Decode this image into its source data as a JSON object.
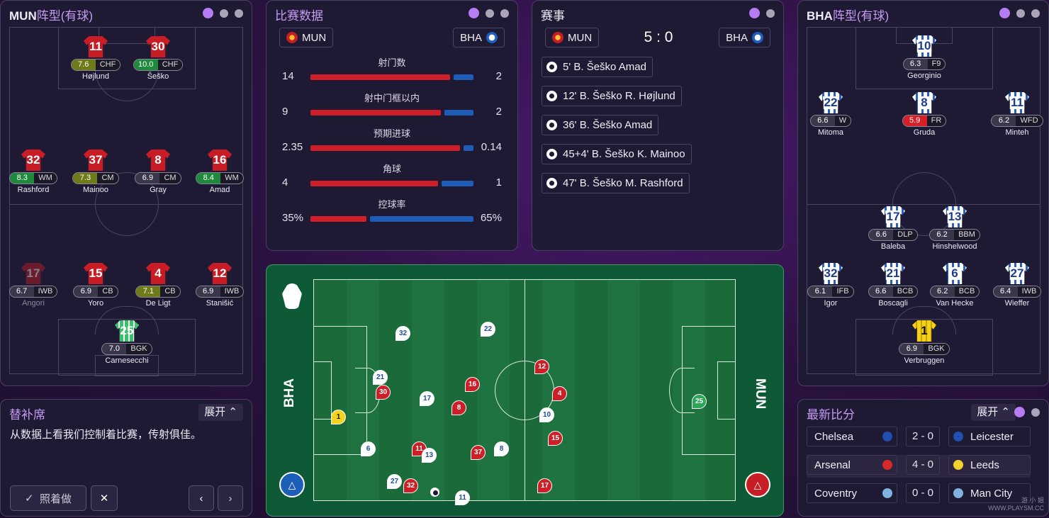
{
  "left_lineup": {
    "team": "MUN",
    "title": "阵型(有球)",
    "players": [
      {
        "num": "11",
        "name": "Højlund",
        "rating": "7.6",
        "pos": "CHF",
        "kit": "red",
        "rc": "y"
      },
      {
        "num": "30",
        "name": "Šeško",
        "rating": "10.0",
        "pos": "CHF",
        "kit": "red",
        "rc": "g"
      },
      {
        "num": "32",
        "name": "Rashford",
        "rating": "8.3",
        "pos": "WM",
        "kit": "red",
        "rc": "g"
      },
      {
        "num": "37",
        "name": "Mainoo",
        "rating": "7.3",
        "pos": "CM",
        "kit": "red",
        "rc": "y"
      },
      {
        "num": "8",
        "name": "Gray",
        "rating": "6.9",
        "pos": "CM",
        "kit": "red",
        "rc": ""
      },
      {
        "num": "16",
        "name": "Amad",
        "rating": "8.4",
        "pos": "WM",
        "kit": "red",
        "rc": "g"
      },
      {
        "num": "17",
        "name": "Angori",
        "rating": "6.7",
        "pos": "IWB",
        "kit": "red",
        "rc": "",
        "dim": true
      },
      {
        "num": "15",
        "name": "Yoro",
        "rating": "6.9",
        "pos": "CB",
        "kit": "red",
        "rc": ""
      },
      {
        "num": "4",
        "name": "De Ligt",
        "rating": "7.1",
        "pos": "CB",
        "kit": "red",
        "rc": "y"
      },
      {
        "num": "12",
        "name": "Stanišić",
        "rating": "6.9",
        "pos": "IWB",
        "kit": "red",
        "rc": ""
      },
      {
        "num": "25",
        "name": "Carnesecchi",
        "rating": "7.0",
        "pos": "BGK",
        "kit": "green",
        "rc": ""
      }
    ]
  },
  "right_lineup": {
    "team": "BHA",
    "title": "阵型(有球)",
    "players": [
      {
        "num": "10",
        "name": "Georginio",
        "rating": "6.3",
        "pos": "F9",
        "kit": "white",
        "rc": ""
      },
      {
        "num": "22",
        "name": "Mitoma",
        "rating": "6.6",
        "pos": "W",
        "kit": "white",
        "rc": ""
      },
      {
        "num": "8",
        "name": "Gruda",
        "rating": "5.9",
        "pos": "FR",
        "kit": "white",
        "rc": "rd"
      },
      {
        "num": "11",
        "name": "Minteh",
        "rating": "6.2",
        "pos": "WFD",
        "kit": "white",
        "rc": ""
      },
      {
        "num": "17",
        "name": "Baleba",
        "rating": "6.6",
        "pos": "DLP",
        "kit": "white",
        "rc": ""
      },
      {
        "num": "13",
        "name": "Hinshelwood",
        "rating": "6.2",
        "pos": "BBM",
        "kit": "white",
        "rc": ""
      },
      {
        "num": "32",
        "name": "Igor",
        "rating": "6.1",
        "pos": "IFB",
        "kit": "white",
        "rc": ""
      },
      {
        "num": "21",
        "name": "Boscagli",
        "rating": "6.6",
        "pos": "BCB",
        "kit": "white",
        "rc": ""
      },
      {
        "num": "6",
        "name": "Van Hecke",
        "rating": "6.2",
        "pos": "BCB",
        "kit": "white",
        "rc": ""
      },
      {
        "num": "27",
        "name": "Wieffer",
        "rating": "6.4",
        "pos": "IWB",
        "kit": "white",
        "rc": ""
      },
      {
        "num": "1",
        "name": "Verbruggen",
        "rating": "6.9",
        "pos": "BGK",
        "kit": "yellow",
        "rc": ""
      }
    ]
  },
  "stats": {
    "title": "比赛数据",
    "home": "MUN",
    "away": "BHA",
    "rows": [
      {
        "label": "射门数",
        "home": "14",
        "away": "2",
        "hv": 14,
        "av": 2
      },
      {
        "label": "射中门框以内",
        "home": "9",
        "away": "2",
        "hv": 9,
        "av": 2
      },
      {
        "label": "预期进球",
        "home": "2.35",
        "away": "0.14",
        "hv": 2.35,
        "av": 0.14
      },
      {
        "label": "角球",
        "home": "4",
        "away": "1",
        "hv": 4,
        "av": 1
      },
      {
        "label": "控球率",
        "home": "35%",
        "away": "65%",
        "hv": 35,
        "av": 65
      }
    ]
  },
  "events": {
    "title": "赛事",
    "home": "MUN",
    "away": "BHA",
    "score": "5 : 0",
    "goals": [
      "5'  B. Šeško Amad",
      "12'  B. Šeško R. Højlund",
      "36'  B. Šeško Amad",
      "45+4'  B. Šeško K. Mainoo",
      "47'  B. Šeško M. Rashford"
    ]
  },
  "match": {
    "left_team": "BHA",
    "right_team": "MUN",
    "markers": [
      {
        "n": "32",
        "c": "w"
      },
      {
        "n": "22",
        "c": "w"
      },
      {
        "n": "21",
        "c": "w"
      },
      {
        "n": "30",
        "c": "r"
      },
      {
        "n": "17",
        "c": "w"
      },
      {
        "n": "16",
        "c": "r"
      },
      {
        "n": "8",
        "c": "r"
      },
      {
        "n": "1",
        "c": "y"
      },
      {
        "n": "12",
        "c": "r"
      },
      {
        "n": "4",
        "c": "r"
      },
      {
        "n": "10",
        "c": "w"
      },
      {
        "n": "15",
        "c": "r"
      },
      {
        "n": "6",
        "c": "w"
      },
      {
        "n": "11",
        "c": "r"
      },
      {
        "n": "13",
        "c": "w"
      },
      {
        "n": "37",
        "c": "r"
      },
      {
        "n": "8",
        "c": "w"
      },
      {
        "n": "27",
        "c": "w"
      },
      {
        "n": "32",
        "c": "r"
      },
      {
        "n": "11",
        "c": "w"
      },
      {
        "n": "17",
        "c": "r"
      },
      {
        "n": "25",
        "c": "g"
      }
    ]
  },
  "bench": {
    "title": "替补席",
    "expand": "展开",
    "text": "从数据上看我们控制着比赛，传射俱佳。",
    "action": "照着做"
  },
  "scores": {
    "title": "最新比分",
    "expand": "展开",
    "rows": [
      {
        "home": "Chelsea",
        "score": "2 - 0",
        "away": "Leicester"
      },
      {
        "home": "Arsenal",
        "score": "4 - 0",
        "away": "Leeds"
      },
      {
        "home": "Coventry",
        "score": "0 - 0",
        "away": "Man City"
      }
    ]
  },
  "watermark": "游 小 姐 WWW.PLAYSM.CC"
}
